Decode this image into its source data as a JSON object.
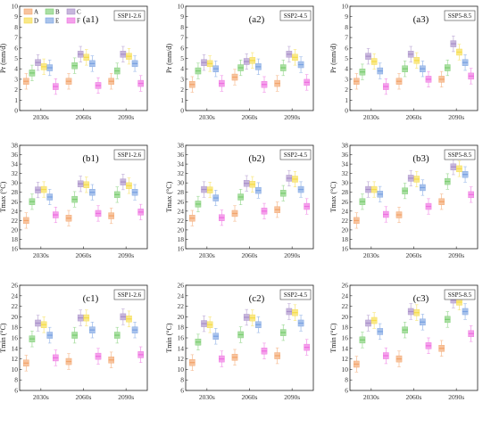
{
  "figure": {
    "legend": [
      {
        "key": "A",
        "color": "#f3a46b"
      },
      {
        "key": "B",
        "color": "#7ccd72"
      },
      {
        "key": "C",
        "color": "#a98fc9"
      },
      {
        "key": "D",
        "color": "#f6dc4a"
      },
      {
        "key": "E",
        "color": "#7aa2e2"
      },
      {
        "key": "F",
        "color": "#ee6fe0"
      }
    ]
  },
  "chart_data": [
    {
      "type": "box",
      "panel_label": "(a1)",
      "scenario": "SSP1-2.6",
      "ylabel": "Pr (mm/d)",
      "ylim": [
        0,
        10
      ],
      "yticks": [
        0,
        1,
        2,
        3,
        4,
        5,
        6,
        7,
        8,
        9,
        10
      ],
      "categories": [
        "2030s",
        "2060s",
        "2090s"
      ],
      "medians": [
        [
          2.8,
          3.6,
          4.6,
          4.2,
          4.1,
          2.3
        ],
        [
          2.8,
          4.3,
          5.4,
          5.1,
          4.5,
          2.4
        ],
        [
          2.8,
          3.8,
          5.4,
          5.2,
          4.5,
          2.6
        ]
      ]
    },
    {
      "type": "box",
      "panel_label": "(a2)",
      "scenario": "SSP2-4.5",
      "ylabel": "Pr (mm/d)",
      "ylim": [
        0,
        10
      ],
      "yticks": [
        0,
        1,
        2,
        3,
        4,
        5,
        6,
        7,
        8,
        9,
        10
      ],
      "categories": [
        "2030s",
        "2060s",
        "2090s"
      ],
      "medians": [
        [
          2.5,
          3.8,
          4.6,
          4.5,
          4.0,
          2.6
        ],
        [
          3.2,
          4.1,
          4.7,
          4.8,
          4.2,
          2.5
        ],
        [
          2.6,
          4.1,
          5.4,
          5.1,
          4.4,
          2.7
        ]
      ]
    },
    {
      "type": "box",
      "panel_label": "(a3)",
      "scenario": "SSP5-8.5",
      "ylabel": "Pr (mm/d)",
      "ylim": [
        0,
        10
      ],
      "yticks": [
        0,
        1,
        2,
        3,
        4,
        5,
        6,
        7,
        8,
        9,
        10
      ],
      "categories": [
        "2030s",
        "2060s",
        "2090s"
      ],
      "medians": [
        [
          2.8,
          3.7,
          5.2,
          4.7,
          3.8,
          2.3
        ],
        [
          2.8,
          4.0,
          5.4,
          4.8,
          4.0,
          3.0
        ],
        [
          3.0,
          4.1,
          6.4,
          5.6,
          4.6,
          3.3
        ]
      ]
    },
    {
      "type": "box",
      "panel_label": "(b1)",
      "scenario": "SSP1-2.6",
      "ylabel": "Tmax (°C)",
      "ylim": [
        16,
        38
      ],
      "yticks": [
        16,
        18,
        20,
        22,
        24,
        26,
        28,
        30,
        32,
        34,
        36,
        38
      ],
      "categories": [
        "2030s",
        "2060s",
        "2090s"
      ],
      "medians": [
        [
          22.0,
          26.0,
          28.5,
          28.6,
          27.0,
          23.2
        ],
        [
          22.5,
          26.5,
          29.8,
          29.6,
          28.0,
          23.5
        ],
        [
          23.0,
          27.5,
          30.2,
          29.4,
          28.0,
          23.8
        ]
      ]
    },
    {
      "type": "box",
      "panel_label": "(b2)",
      "scenario": "SSP2-4.5",
      "ylabel": "Tmax (°C)",
      "ylim": [
        16,
        38
      ],
      "yticks": [
        16,
        18,
        20,
        22,
        24,
        26,
        28,
        30,
        32,
        34,
        36,
        38
      ],
      "categories": [
        "2030s",
        "2060s",
        "2090s"
      ],
      "medians": [
        [
          22.5,
          25.5,
          28.6,
          28.5,
          26.8,
          22.6
        ],
        [
          23.5,
          27.0,
          29.9,
          29.7,
          28.4,
          24.0
        ],
        [
          24.3,
          27.8,
          31.0,
          30.8,
          28.6,
          25.0
        ]
      ]
    },
    {
      "type": "box",
      "panel_label": "(b3)",
      "scenario": "SSP5-8.5",
      "ylabel": "Tmax (°C)",
      "ylim": [
        16,
        38
      ],
      "yticks": [
        16,
        18,
        20,
        22,
        24,
        26,
        28,
        30,
        32,
        34,
        36,
        38
      ],
      "categories": [
        "2030s",
        "2060s",
        "2090s"
      ],
      "medians": [
        [
          22.0,
          26.0,
          28.6,
          28.6,
          27.6,
          23.3
        ],
        [
          23.2,
          28.3,
          31.0,
          30.8,
          29.0,
          25.0
        ],
        [
          26.0,
          30.3,
          33.4,
          33.0,
          31.8,
          27.5
        ]
      ]
    },
    {
      "type": "box",
      "panel_label": "(c1)",
      "scenario": "SSP1-2.6",
      "ylabel": "Tmin (°C)",
      "ylim": [
        6,
        26
      ],
      "yticks": [
        6,
        8,
        10,
        12,
        14,
        16,
        18,
        20,
        22,
        24,
        26
      ],
      "categories": [
        "2030s",
        "2060s",
        "2090s"
      ],
      "medians": [
        [
          11.2,
          15.8,
          18.8,
          18.5,
          16.5,
          12.2
        ],
        [
          11.5,
          16.5,
          19.8,
          19.8,
          17.5,
          12.5
        ],
        [
          11.8,
          16.5,
          20.0,
          19.6,
          17.5,
          12.8
        ]
      ]
    },
    {
      "type": "box",
      "panel_label": "(c2)",
      "scenario": "SSP2-4.5",
      "ylabel": "Tmin (°C)",
      "ylim": [
        6,
        26
      ],
      "yticks": [
        6,
        8,
        10,
        12,
        14,
        16,
        18,
        20,
        22,
        24,
        26
      ],
      "categories": [
        "2030s",
        "2060s",
        "2090s"
      ],
      "medians": [
        [
          11.3,
          15.2,
          18.7,
          18.5,
          16.3,
          12.0
        ],
        [
          12.3,
          16.6,
          19.9,
          19.8,
          18.5,
          13.5
        ],
        [
          12.6,
          17.0,
          21.0,
          20.8,
          18.8,
          14.2
        ]
      ]
    },
    {
      "type": "box",
      "panel_label": "(c3)",
      "scenario": "SSP5-8.5",
      "ylabel": "Tmin (°C)",
      "ylim": [
        6,
        26
      ],
      "yticks": [
        6,
        8,
        10,
        12,
        14,
        16,
        18,
        20,
        22,
        24,
        26
      ],
      "categories": [
        "2030s",
        "2060s",
        "2090s"
      ],
      "medians": [
        [
          11.0,
          15.6,
          18.8,
          19.3,
          17.2,
          12.6
        ],
        [
          12.0,
          17.5,
          21.0,
          20.8,
          19.0,
          14.5
        ],
        [
          14.0,
          19.5,
          23.2,
          22.8,
          21.0,
          16.8
        ]
      ]
    }
  ]
}
